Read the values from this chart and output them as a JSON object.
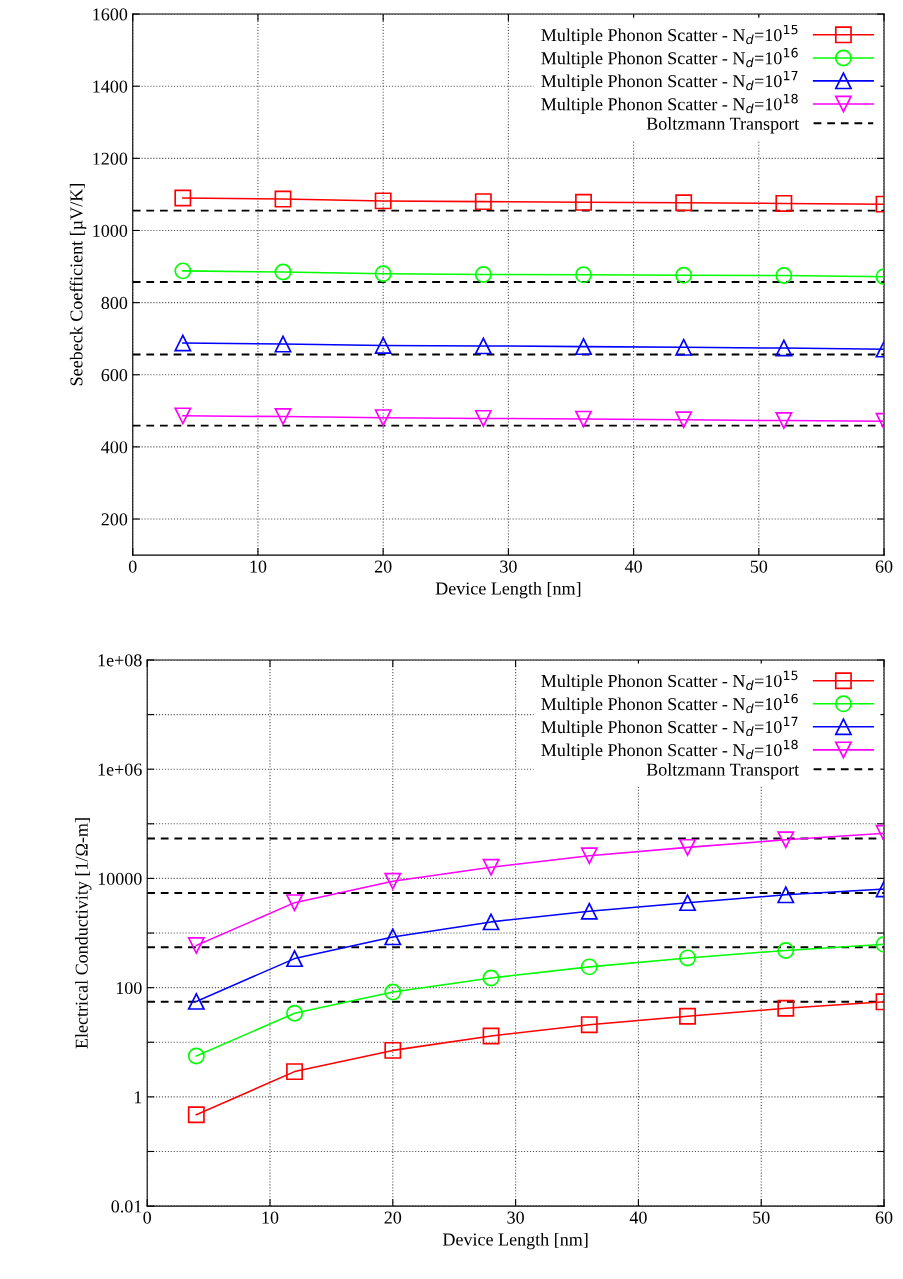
{
  "chart_data": [
    {
      "type": "line",
      "xlabel": "Device Length [nm]",
      "ylabel": "Seebeck Coefficient [µV/K]",
      "x": [
        4,
        12,
        20,
        28,
        36,
        44,
        52,
        60
      ],
      "series": [
        {
          "name": "Multiple Phonon Scatter - N$_{d}$=10$^{15}$",
          "color": "#ff0000",
          "marker": "square",
          "values": [
            1090,
            1087,
            1082,
            1080,
            1078,
            1077,
            1075,
            1073
          ]
        },
        {
          "name": "Multiple Phonon Scatter - N$_{d}$=10$^{16}$",
          "color": "#00ff00",
          "marker": "circle",
          "values": [
            888,
            885,
            880,
            878,
            877,
            876,
            875,
            872
          ]
        },
        {
          "name": "Multiple Phonon Scatter - N$_{d}$=10$^{17}$",
          "color": "#0000ff",
          "marker": "triangle",
          "values": [
            688,
            685,
            681,
            680,
            678,
            676,
            674,
            671
          ]
        },
        {
          "name": "Multiple Phonon Scatter - N$_{d}$=10$^{18}$",
          "color": "#ff00ff",
          "marker": "triangle_down",
          "values": [
            486,
            484,
            481,
            479,
            477,
            475,
            473,
            471
          ]
        }
      ],
      "ref_lines": [
        {
          "axis": "y",
          "value": 1055,
          "label": "Boltzmann Transport",
          "color": "#000000",
          "line_style": "dashed"
        },
        {
          "axis": "y",
          "value": 857,
          "color": "#000000",
          "line_style": "dashed"
        },
        {
          "axis": "y",
          "value": 656,
          "color": "#000000",
          "line_style": "dashed"
        },
        {
          "axis": "y",
          "value": 459,
          "color": "#000000",
          "line_style": "dashed"
        }
      ],
      "xlim": [
        0,
        60
      ],
      "xticks": [
        0,
        10,
        20,
        30,
        40,
        50,
        60
      ],
      "ylim": [
        100,
        1600
      ],
      "yticks": [
        200,
        400,
        600,
        800,
        1000,
        1200,
        1400,
        1600
      ],
      "grid": true,
      "legend": "top right",
      "line_style": "solid"
    },
    {
      "type": "line",
      "xlabel": "Device Length [nm]",
      "ylabel": "Electrical Conductivity [1/Ω-m]",
      "x": [
        4,
        12,
        20,
        28,
        36,
        44,
        52,
        60
      ],
      "series": [
        {
          "name": "Multiple Phonon Scatter - N$_{d}$=10$^{15}$",
          "color": "#ff0000",
          "marker": "square",
          "values": [
            0.47,
            2.9,
            7.1,
            13,
            21,
            30,
            42,
            55
          ]
        },
        {
          "name": "Multiple Phonon Scatter - N$_{d}$=10$^{16}$",
          "color": "#00ff00",
          "marker": "circle",
          "values": [
            5.6,
            34,
            83,
            150,
            240,
            350,
            480,
            620
          ]
        },
        {
          "name": "Multiple Phonon Scatter - N$_{d}$=10$^{17}$",
          "color": "#0000ff",
          "marker": "triangle",
          "values": [
            56,
            340,
            850,
            1600,
            2500,
            3600,
            5000,
            6400
          ]
        },
        {
          "name": "Multiple Phonon Scatter - N$_{d}$=10$^{18}$",
          "color": "#ff00ff",
          "marker": "triangle_down",
          "values": [
            590,
            3600,
            8900,
            16000,
            26000,
            37000,
            51000,
            67000
          ]
        }
      ],
      "ref_lines": [
        {
          "axis": "y",
          "value": 54000,
          "label": "Boltzmann Transport",
          "color": "#000000",
          "line_style": "dashed"
        },
        {
          "axis": "y",
          "value": 5400,
          "color": "#000000",
          "line_style": "dashed"
        },
        {
          "axis": "y",
          "value": 550,
          "color": "#000000",
          "line_style": "dashed"
        },
        {
          "axis": "y",
          "value": 55,
          "color": "#000000",
          "line_style": "dashed"
        }
      ],
      "log": "y",
      "xlim": [
        0,
        60
      ],
      "xticks": [
        0,
        10,
        20,
        30,
        40,
        50,
        60
      ],
      "ylim": [
        0.01,
        100000000
      ],
      "yticks": [
        {
          "value": 0.01,
          "label": "0.01"
        },
        {
          "value": 0.1,
          "label": null
        },
        {
          "value": 1,
          "label": "1"
        },
        {
          "value": 10,
          "label": null
        },
        {
          "value": 100,
          "label": "100"
        },
        {
          "value": 1000,
          "label": null
        },
        {
          "value": 10000,
          "label": "10000"
        },
        {
          "value": 100000,
          "label": null
        },
        {
          "value": 1000000,
          "label": "1e+06"
        },
        {
          "value": 10000000,
          "label": null
        },
        {
          "value": 100000000,
          "label": "1e+08"
        }
      ],
      "grid": true,
      "legend": "top right",
      "line_style": "solid"
    }
  ]
}
